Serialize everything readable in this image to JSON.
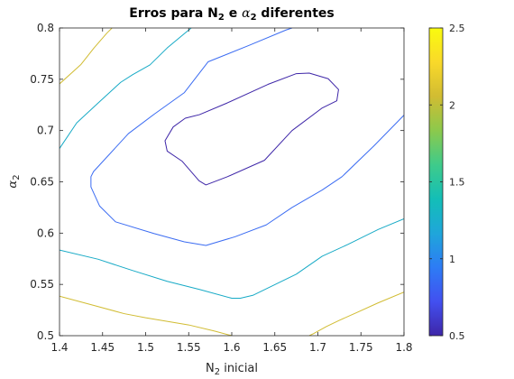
{
  "chart_data": {
    "type": "contour",
    "title": {
      "part1": "Erros para N",
      "sub1": "2",
      "part2": " e ",
      "alpha": "α",
      "sub2": "2",
      "part3": " diferentes"
    },
    "xlabel": {
      "main": "N",
      "sub": "2",
      "rest": " inicial"
    },
    "ylabel": {
      "main": "α",
      "sub": "2"
    },
    "xlim": [
      1.4,
      1.8
    ],
    "ylim": [
      0.5,
      0.8
    ],
    "xticks": [
      1.4,
      1.45,
      1.5,
      1.55,
      1.6,
      1.65,
      1.7,
      1.75,
      1.8
    ],
    "xtick_labels": [
      "1.4",
      "1.45",
      "1.5",
      "1.55",
      "1.6",
      "1.65",
      "1.7",
      "1.75",
      "1.8"
    ],
    "yticks": [
      0.5,
      0.55,
      0.6,
      0.65,
      0.7,
      0.75,
      0.8
    ],
    "ytick_labels": [
      "0.5",
      "0.55",
      "0.6",
      "0.65",
      "0.7",
      "0.75",
      "0.8"
    ],
    "colorbar": {
      "range": [
        0.5,
        2.5
      ],
      "ticks": [
        0.5,
        1,
        1.5,
        2,
        2.5
      ],
      "tick_labels": [
        "0.5",
        "1",
        "1.5",
        "2",
        "2.5"
      ],
      "colormap": "parula",
      "stops": [
        "#3e26a8",
        "#4250f0",
        "#2d7cf5",
        "#1fa6da",
        "#13beb7",
        "#3fcb8a",
        "#8cc94c",
        "#d1bc32",
        "#f9d92a",
        "#f9fb0e"
      ]
    },
    "contours": [
      {
        "level": 0.5,
        "color": "#3e26a8",
        "closed": true,
        "points": [
          [
            1.5225,
            0.69
          ],
          [
            1.525,
            0.68
          ],
          [
            1.5425,
            0.67
          ],
          [
            1.562,
            0.651
          ],
          [
            1.57,
            0.647
          ],
          [
            1.595,
            0.655
          ],
          [
            1.638,
            0.671
          ],
          [
            1.67,
            0.7
          ],
          [
            1.705,
            0.722
          ],
          [
            1.722,
            0.729
          ],
          [
            1.724,
            0.74
          ],
          [
            1.712,
            0.7505
          ],
          [
            1.69,
            0.756
          ],
          [
            1.675,
            0.7555
          ],
          [
            1.642,
            0.745
          ],
          [
            1.595,
            0.727
          ],
          [
            1.5625,
            0.7155
          ],
          [
            1.546,
            0.712
          ],
          [
            1.532,
            0.7035
          ]
        ]
      },
      {
        "level": 1.0,
        "color": "#3b6cf2",
        "closed": false,
        "points": [
          [
            1.8,
            0.715
          ],
          [
            1.765,
            0.685
          ],
          [
            1.728,
            0.655
          ],
          [
            1.705,
            0.642
          ],
          [
            1.67,
            0.625
          ],
          [
            1.64,
            0.608
          ],
          [
            1.604,
            0.5965
          ],
          [
            1.57,
            0.588
          ],
          [
            1.545,
            0.5915
          ],
          [
            1.51,
            0.5995
          ],
          [
            1.465,
            0.611
          ],
          [
            1.4465,
            0.6265
          ],
          [
            1.4365,
            0.645
          ],
          [
            1.4365,
            0.655
          ],
          [
            1.4395,
            0.66
          ],
          [
            1.48,
            0.697
          ],
          [
            1.51,
            0.716
          ],
          [
            1.545,
            0.737
          ],
          [
            1.5725,
            0.767
          ],
          [
            1.62,
            0.783
          ],
          [
            1.663,
            0.798
          ],
          [
            1.67,
            0.8
          ]
        ]
      },
      {
        "level": 1.5,
        "color": "#17aac6",
        "closed": false,
        "points": [
          [
            1.8,
            0.614
          ],
          [
            1.77,
            0.6035
          ],
          [
            1.735,
            0.589
          ],
          [
            1.705,
            0.5775
          ],
          [
            1.675,
            0.56
          ],
          [
            1.625,
            0.5395
          ],
          [
            1.61,
            0.5365
          ],
          [
            1.6,
            0.5365
          ],
          [
            1.563,
            0.545
          ],
          [
            1.525,
            0.553
          ],
          [
            1.485,
            0.5635
          ],
          [
            1.445,
            0.5745
          ],
          [
            1.4,
            0.5835
          ]
        ]
      },
      {
        "level": 1.5,
        "color": "#17aac6",
        "closed": false,
        "points": [
          [
            1.4,
            0.6825
          ],
          [
            1.42,
            0.7075
          ],
          [
            1.445,
            0.727
          ],
          [
            1.471,
            0.747
          ],
          [
            1.485,
            0.7545
          ],
          [
            1.505,
            0.764
          ],
          [
            1.525,
            0.7805
          ],
          [
            1.545,
            0.7945
          ],
          [
            1.553,
            0.8
          ]
        ]
      },
      {
        "level": 2.0,
        "color": "#d1bc32",
        "closed": false,
        "points": [
          [
            1.4,
            0.5385
          ],
          [
            1.44,
            0.5295
          ],
          [
            1.475,
            0.5215
          ],
          [
            1.5,
            0.5175
          ],
          [
            1.55,
            0.5105
          ],
          [
            1.58,
            0.5045
          ],
          [
            1.6,
            0.5
          ]
        ]
      },
      {
        "level": 2.0,
        "color": "#d1bc32",
        "closed": false,
        "points": [
          [
            1.8,
            0.5425
          ],
          [
            1.77,
            0.532
          ],
          [
            1.745,
            0.5225
          ],
          [
            1.725,
            0.515
          ],
          [
            1.71,
            0.509
          ],
          [
            1.695,
            0.502
          ],
          [
            1.69,
            0.5
          ]
        ]
      },
      {
        "level": 2.0,
        "color": "#d1bc32",
        "closed": false,
        "points": [
          [
            1.4,
            0.7455
          ],
          [
            1.425,
            0.7645
          ],
          [
            1.44,
            0.7805
          ],
          [
            1.455,
            0.795
          ],
          [
            1.461,
            0.8
          ]
        ]
      }
    ]
  }
}
